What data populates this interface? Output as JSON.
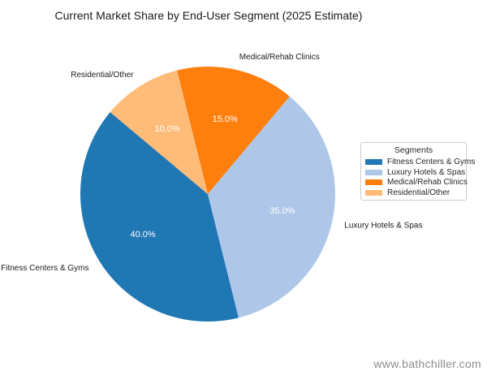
{
  "page": {
    "watermark": "www.bathchiller.com"
  },
  "chart_data": {
    "type": "pie",
    "title": "Current Market Share by End-User Segment (2025 Estimate)",
    "labels": [
      "Fitness Centers & Gyms",
      "Luxury Hotels & Spas",
      "Medical/Rehab Clinics",
      "Residential/Other"
    ],
    "values": [
      40.0,
      35.0,
      15.0,
      10.0
    ],
    "pct_labels": [
      "40.0%",
      "35.0%",
      "15.0%",
      "10.0%"
    ],
    "colors": [
      "#1f77b4",
      "#aec7e8",
      "#ff7f0e",
      "#ffbb78"
    ],
    "start_angle": 140,
    "direction": "counterclockwise",
    "pct_text_color": "#ffffff",
    "outer_label_color": "#1a1a1a",
    "legend": {
      "title": "Segments",
      "position": "center right"
    }
  }
}
